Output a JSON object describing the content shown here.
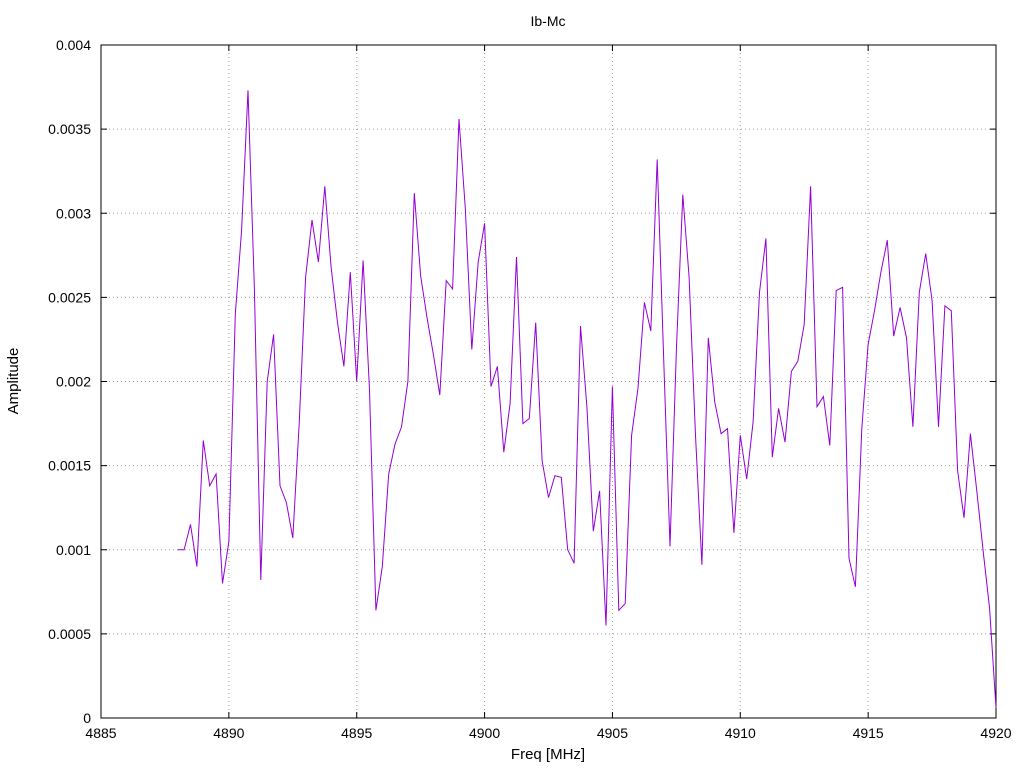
{
  "chart_data": {
    "type": "line",
    "title": "Ib-Mc",
    "xlabel": "Freq [MHz]",
    "ylabel": "Amplitude",
    "xlim": [
      4885,
      4920
    ],
    "ylim": [
      0,
      0.004
    ],
    "xticks": [
      4885,
      4890,
      4895,
      4900,
      4905,
      4910,
      4915,
      4920
    ],
    "yticks": [
      0,
      0.0005,
      0.001,
      0.0015,
      0.002,
      0.0025,
      0.003,
      0.0035,
      0.004
    ],
    "xtick_labels": [
      "4885",
      "4890",
      "4895",
      "4900",
      "4905",
      "4910",
      "4915",
      "4920"
    ],
    "ytick_labels": [
      "0",
      "0.0005",
      "0.001",
      "0.0015",
      "0.002",
      "0.0025",
      "0.003",
      "0.0035",
      "0.004"
    ],
    "grid": true,
    "line_color": "#9400d3",
    "series": [
      {
        "x": [
          4888.0,
          4888.25,
          4888.5,
          4888.75,
          4889.0,
          4889.25,
          4889.5,
          4889.75,
          4890.0,
          4890.25,
          4890.5,
          4890.75,
          4891.0,
          4891.25,
          4891.5,
          4891.75,
          4892.0,
          4892.25,
          4892.5,
          4892.75,
          4893.0,
          4893.25,
          4893.5,
          4893.75,
          4894.0,
          4894.25,
          4894.5,
          4894.75,
          4895.0,
          4895.25,
          4895.5,
          4895.75,
          4896.0,
          4896.25,
          4896.5,
          4896.75,
          4897.0,
          4897.25,
          4897.5,
          4897.75,
          4898.0,
          4898.25,
          4898.5,
          4898.75,
          4899.0,
          4899.25,
          4899.5,
          4899.75,
          4900.0,
          4900.25,
          4900.5,
          4900.75,
          4901.0,
          4901.25,
          4901.5,
          4901.75,
          4902.0,
          4902.25,
          4902.5,
          4902.75,
          4903.0,
          4903.25,
          4903.5,
          4903.75,
          4904.0,
          4904.25,
          4904.5,
          4904.75,
          4905.0,
          4905.25,
          4905.5,
          4905.75,
          4906.0,
          4906.25,
          4906.5,
          4906.75,
          4907.0,
          4907.25,
          4907.5,
          4907.75,
          4908.0,
          4908.25,
          4908.5,
          4908.75,
          4909.0,
          4909.25,
          4909.5,
          4909.75,
          4910.0,
          4910.25,
          4910.5,
          4910.75,
          4911.0,
          4911.25,
          4911.5,
          4911.75,
          4912.0,
          4912.25,
          4912.5,
          4912.75,
          4913.0,
          4913.25,
          4913.5,
          4913.75,
          4914.0,
          4914.25,
          4914.5,
          4914.75,
          4915.0,
          4915.25,
          4915.5,
          4915.75,
          4916.0,
          4916.25,
          4916.5,
          4916.75,
          4917.0,
          4917.25,
          4917.5,
          4917.75,
          4918.0,
          4918.25,
          4918.5,
          4918.75,
          4919.0,
          4919.25,
          4919.5,
          4919.75,
          4920.0
        ],
        "values": [
          0.001,
          0.001,
          0.00115,
          0.0009,
          0.00165,
          0.00138,
          0.00145,
          0.0008,
          0.00105,
          0.0024,
          0.0029,
          0.00373,
          0.00255,
          0.00082,
          0.002,
          0.00228,
          0.00138,
          0.00128,
          0.00107,
          0.00175,
          0.00262,
          0.00296,
          0.00271,
          0.00316,
          0.00268,
          0.00235,
          0.00209,
          0.00265,
          0.002,
          0.00272,
          0.00195,
          0.00064,
          0.0009,
          0.00145,
          0.00163,
          0.00173,
          0.002,
          0.00312,
          0.00263,
          0.00238,
          0.00216,
          0.00192,
          0.0026,
          0.00255,
          0.00356,
          0.00302,
          0.00219,
          0.00271,
          0.00294,
          0.00197,
          0.00209,
          0.00158,
          0.00187,
          0.00274,
          0.00175,
          0.00178,
          0.00235,
          0.00153,
          0.00131,
          0.00144,
          0.00143,
          0.001,
          0.00092,
          0.00233,
          0.00185,
          0.00111,
          0.00135,
          0.00055,
          0.00197,
          0.00064,
          0.00068,
          0.00168,
          0.00196,
          0.00247,
          0.0023,
          0.00332,
          0.00215,
          0.00102,
          0.00219,
          0.00311,
          0.00262,
          0.00168,
          0.00091,
          0.00226,
          0.00188,
          0.00169,
          0.00172,
          0.0011,
          0.00168,
          0.00142,
          0.00176,
          0.00253,
          0.00285,
          0.00155,
          0.00184,
          0.00164,
          0.00206,
          0.00212,
          0.00234,
          0.00316,
          0.00185,
          0.00191,
          0.00162,
          0.00254,
          0.00256,
          0.00095,
          0.00078,
          0.00172,
          0.00222,
          0.00242,
          0.00265,
          0.00284,
          0.00227,
          0.00244,
          0.00226,
          0.00173,
          0.00253,
          0.00276,
          0.00248,
          0.00173,
          0.00245,
          0.00242,
          0.00147,
          0.00119,
          0.00169,
          0.00135,
          0.00099,
          0.00065,
          6e-05
        ]
      }
    ]
  }
}
